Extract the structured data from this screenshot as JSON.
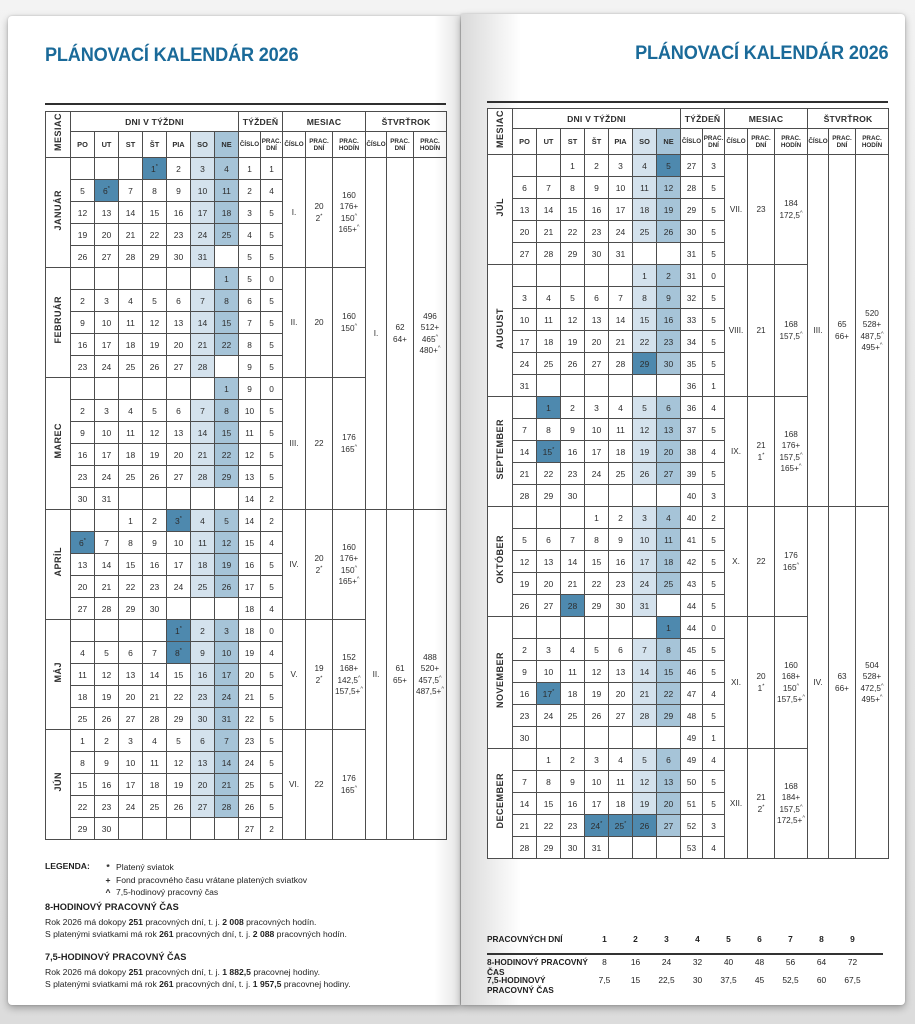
{
  "page_title": "PLÁNOVACÍ KALENDÁR 2026",
  "colors": {
    "accent": "#1a6a99",
    "holiday": "#4e89ae",
    "sunday": "#a6c4d8",
    "saturday": "#d4e2ed"
  },
  "table_header": {
    "mesiac_vertical": "MESIAC",
    "dni_v_tyzdni": "DNI V TÝŽDNI",
    "tyzden": "TÝŽDEŇ",
    "mesiac": "MESIAC",
    "stvrtrok": "ŠTVRŤROK",
    "days": [
      "PO",
      "UT",
      "ST",
      "ŠT",
      "PIA",
      "SO",
      "NE"
    ],
    "cislo": "ČÍSLO",
    "prac_dni": "PRAC.\nDNÍ",
    "prac_hodin": "PRAC.\nHODÍN"
  },
  "left_months": [
    {
      "name": "JANUÁR",
      "cislo": "I.",
      "dni": [
        "20",
        "2*"
      ],
      "hodiny": [
        "160",
        "176+",
        "150^",
        "165+^"
      ],
      "weeks": [
        {
          "d": [
            "",
            "",
            "",
            "1*",
            "2",
            "3",
            "4"
          ],
          "w": "1",
          "p": "1"
        },
        {
          "d": [
            "5",
            "6*",
            "7",
            "8",
            "9",
            "10",
            "11"
          ],
          "w": "2",
          "p": "4"
        },
        {
          "d": [
            "12",
            "13",
            "14",
            "15",
            "16",
            "17",
            "18"
          ],
          "w": "3",
          "p": "5"
        },
        {
          "d": [
            "19",
            "20",
            "21",
            "22",
            "23",
            "24",
            "25"
          ],
          "w": "4",
          "p": "5"
        },
        {
          "d": [
            "26",
            "27",
            "28",
            "29",
            "30",
            "31",
            ""
          ],
          "w": "5",
          "p": "5"
        }
      ]
    },
    {
      "name": "FEBRUÁR",
      "cislo": "II.",
      "dni": [
        "20"
      ],
      "hodiny": [
        "160",
        "150^"
      ],
      "weeks": [
        {
          "d": [
            "",
            "",
            "",
            "",
            "",
            "",
            "1"
          ],
          "w": "5",
          "p": "0"
        },
        {
          "d": [
            "2",
            "3",
            "4",
            "5",
            "6",
            "7",
            "8"
          ],
          "w": "6",
          "p": "5"
        },
        {
          "d": [
            "9",
            "10",
            "11",
            "12",
            "13",
            "14",
            "15"
          ],
          "w": "7",
          "p": "5"
        },
        {
          "d": [
            "16",
            "17",
            "18",
            "19",
            "20",
            "21",
            "22"
          ],
          "w": "8",
          "p": "5"
        },
        {
          "d": [
            "23",
            "24",
            "25",
            "26",
            "27",
            "28",
            ""
          ],
          "w": "9",
          "p": "5"
        }
      ]
    },
    {
      "name": "MAREC",
      "cislo": "III.",
      "dni": [
        "22"
      ],
      "hodiny": [
        "176",
        "165^"
      ],
      "weeks": [
        {
          "d": [
            "",
            "",
            "",
            "",
            "",
            "",
            "1"
          ],
          "w": "9",
          "p": "0"
        },
        {
          "d": [
            "2",
            "3",
            "4",
            "5",
            "6",
            "7",
            "8"
          ],
          "w": "10",
          "p": "5"
        },
        {
          "d": [
            "9",
            "10",
            "11",
            "12",
            "13",
            "14",
            "15"
          ],
          "w": "11",
          "p": "5"
        },
        {
          "d": [
            "16",
            "17",
            "18",
            "19",
            "20",
            "21",
            "22"
          ],
          "w": "12",
          "p": "5"
        },
        {
          "d": [
            "23",
            "24",
            "25",
            "26",
            "27",
            "28",
            "29"
          ],
          "w": "13",
          "p": "5"
        },
        {
          "d": [
            "30",
            "31",
            "",
            "",
            "",
            "",
            ""
          ],
          "w": "14",
          "p": "2"
        }
      ]
    },
    {
      "name": "APRÍL",
      "cislo": "IV.",
      "dni": [
        "20",
        "2*"
      ],
      "hodiny": [
        "160",
        "176+",
        "150^",
        "165+^"
      ],
      "weeks": [
        {
          "d": [
            "",
            "",
            "1",
            "2",
            "3*",
            "4",
            "5"
          ],
          "w": "14",
          "p": "2"
        },
        {
          "d": [
            "6*",
            "7",
            "8",
            "9",
            "10",
            "11",
            "12"
          ],
          "w": "15",
          "p": "4"
        },
        {
          "d": [
            "13",
            "14",
            "15",
            "16",
            "17",
            "18",
            "19"
          ],
          "w": "16",
          "p": "5"
        },
        {
          "d": [
            "20",
            "21",
            "22",
            "23",
            "24",
            "25",
            "26"
          ],
          "w": "17",
          "p": "5"
        },
        {
          "d": [
            "27",
            "28",
            "29",
            "30",
            "",
            "",
            ""
          ],
          "w": "18",
          "p": "4"
        }
      ]
    },
    {
      "name": "MÁJ",
      "cislo": "V.",
      "dni": [
        "19",
        "2*"
      ],
      "hodiny": [
        "152",
        "168+",
        "142,5^",
        "157,5+^"
      ],
      "weeks": [
        {
          "d": [
            "",
            "",
            "",
            "",
            "1*",
            "2",
            "3"
          ],
          "w": "18",
          "p": "0"
        },
        {
          "d": [
            "4",
            "5",
            "6",
            "7",
            "8*",
            "9",
            "10"
          ],
          "w": "19",
          "p": "4"
        },
        {
          "d": [
            "11",
            "12",
            "13",
            "14",
            "15",
            "16",
            "17"
          ],
          "w": "20",
          "p": "5"
        },
        {
          "d": [
            "18",
            "19",
            "20",
            "21",
            "22",
            "23",
            "24"
          ],
          "w": "21",
          "p": "5"
        },
        {
          "d": [
            "25",
            "26",
            "27",
            "28",
            "29",
            "30",
            "31"
          ],
          "w": "22",
          "p": "5"
        }
      ]
    },
    {
      "name": "JÚN",
      "cislo": "VI.",
      "dni": [
        "22"
      ],
      "hodiny": [
        "176",
        "165^"
      ],
      "weeks": [
        {
          "d": [
            "1",
            "2",
            "3",
            "4",
            "5",
            "6",
            "7"
          ],
          "w": "23",
          "p": "5"
        },
        {
          "d": [
            "8",
            "9",
            "10",
            "11",
            "12",
            "13",
            "14"
          ],
          "w": "24",
          "p": "5"
        },
        {
          "d": [
            "15",
            "16",
            "17",
            "18",
            "19",
            "20",
            "21"
          ],
          "w": "25",
          "p": "5"
        },
        {
          "d": [
            "22",
            "23",
            "24",
            "25",
            "26",
            "27",
            "28"
          ],
          "w": "26",
          "p": "5"
        },
        {
          "d": [
            "29",
            "30",
            "",
            "",
            "",
            "",
            ""
          ],
          "w": "27",
          "p": "2"
        }
      ]
    }
  ],
  "right_months": [
    {
      "name": "JÚL",
      "cislo": "VII.",
      "dni": [
        "23"
      ],
      "hodiny": [
        "184",
        "172,5^"
      ],
      "weeks": [
        {
          "d": [
            "",
            "",
            "1",
            "2",
            "3",
            "4",
            "5!"
          ],
          "w": "27",
          "p": "3"
        },
        {
          "d": [
            "6",
            "7",
            "8",
            "9",
            "10",
            "11",
            "12"
          ],
          "w": "28",
          "p": "5"
        },
        {
          "d": [
            "13",
            "14",
            "15",
            "16",
            "17",
            "18",
            "19"
          ],
          "w": "29",
          "p": "5"
        },
        {
          "d": [
            "20",
            "21",
            "22",
            "23",
            "24",
            "25",
            "26"
          ],
          "w": "30",
          "p": "5"
        },
        {
          "d": [
            "27",
            "28",
            "29",
            "30",
            "31",
            "",
            ""
          ],
          "w": "31",
          "p": "5"
        }
      ]
    },
    {
      "name": "AUGUST",
      "cislo": "VIII.",
      "dni": [
        "21"
      ],
      "hodiny": [
        "168",
        "157,5^"
      ],
      "weeks": [
        {
          "d": [
            "",
            "",
            "",
            "",
            "",
            "1",
            "2"
          ],
          "w": "31",
          "p": "0"
        },
        {
          "d": [
            "3",
            "4",
            "5",
            "6",
            "7",
            "8",
            "9"
          ],
          "w": "32",
          "p": "5"
        },
        {
          "d": [
            "10",
            "11",
            "12",
            "13",
            "14",
            "15",
            "16"
          ],
          "w": "33",
          "p": "5"
        },
        {
          "d": [
            "17",
            "18",
            "19",
            "20",
            "21",
            "22",
            "23"
          ],
          "w": "34",
          "p": "5"
        },
        {
          "d": [
            "24",
            "25",
            "26",
            "27",
            "28",
            "29!",
            "30"
          ],
          "w": "35",
          "p": "5"
        },
        {
          "d": [
            "31",
            "",
            "",
            "",
            "",
            "",
            ""
          ],
          "w": "36",
          "p": "1"
        }
      ]
    },
    {
      "name": "SEPTEMBER",
      "cislo": "IX.",
      "dni": [
        "21",
        "1*"
      ],
      "hodiny": [
        "168",
        "176+",
        "157,5^",
        "165+^"
      ],
      "weeks": [
        {
          "d": [
            "",
            "1!",
            "2",
            "3",
            "4",
            "5",
            "6"
          ],
          "w": "36",
          "p": "4"
        },
        {
          "d": [
            "7",
            "8",
            "9",
            "10",
            "11",
            "12",
            "13"
          ],
          "w": "37",
          "p": "5"
        },
        {
          "d": [
            "14",
            "15*",
            "16",
            "17",
            "18",
            "19",
            "20"
          ],
          "w": "38",
          "p": "4"
        },
        {
          "d": [
            "21",
            "22",
            "23",
            "24",
            "25",
            "26",
            "27"
          ],
          "w": "39",
          "p": "5"
        },
        {
          "d": [
            "28",
            "29",
            "30",
            "",
            "",
            "",
            ""
          ],
          "w": "40",
          "p": "3"
        }
      ]
    },
    {
      "name": "OKTÓBER",
      "cislo": "X.",
      "dni": [
        "22"
      ],
      "hodiny": [
        "176",
        "165^"
      ],
      "weeks": [
        {
          "d": [
            "",
            "",
            "",
            "1",
            "2",
            "3",
            "4"
          ],
          "w": "40",
          "p": "2"
        },
        {
          "d": [
            "5",
            "6",
            "7",
            "8",
            "9",
            "10",
            "11"
          ],
          "w": "41",
          "p": "5"
        },
        {
          "d": [
            "12",
            "13",
            "14",
            "15",
            "16",
            "17",
            "18"
          ],
          "w": "42",
          "p": "5"
        },
        {
          "d": [
            "19",
            "20",
            "21",
            "22",
            "23",
            "24",
            "25"
          ],
          "w": "43",
          "p": "5"
        },
        {
          "d": [
            "26",
            "27",
            "28!",
            "29",
            "30",
            "31",
            ""
          ],
          "w": "44",
          "p": "5"
        }
      ]
    },
    {
      "name": "NOVEMBER",
      "cislo": "XI.",
      "dni": [
        "20",
        "1*"
      ],
      "hodiny": [
        "160",
        "168+",
        "150^",
        "157,5+^"
      ],
      "weeks": [
        {
          "d": [
            "",
            "",
            "",
            "",
            "",
            "",
            "1!"
          ],
          "w": "44",
          "p": "0"
        },
        {
          "d": [
            "2",
            "3",
            "4",
            "5",
            "6",
            "7",
            "8"
          ],
          "w": "45",
          "p": "5"
        },
        {
          "d": [
            "9",
            "10",
            "11",
            "12",
            "13",
            "14",
            "15"
          ],
          "w": "46",
          "p": "5"
        },
        {
          "d": [
            "16",
            "17*",
            "18",
            "19",
            "20",
            "21",
            "22"
          ],
          "w": "47",
          "p": "4"
        },
        {
          "d": [
            "23",
            "24",
            "25",
            "26",
            "27",
            "28",
            "29"
          ],
          "w": "48",
          "p": "5"
        },
        {
          "d": [
            "30",
            "",
            "",
            "",
            "",
            "",
            ""
          ],
          "w": "49",
          "p": "1"
        }
      ]
    },
    {
      "name": "DECEMBER",
      "cislo": "XII.",
      "dni": [
        "21",
        "2*"
      ],
      "hodiny": [
        "168",
        "184+",
        "157,5^",
        "172,5+^"
      ],
      "weeks": [
        {
          "d": [
            "",
            "1",
            "2",
            "3",
            "4",
            "5",
            "6"
          ],
          "w": "49",
          "p": "4"
        },
        {
          "d": [
            "7",
            "8",
            "9",
            "10",
            "11",
            "12",
            "13"
          ],
          "w": "50",
          "p": "5"
        },
        {
          "d": [
            "14",
            "15",
            "16",
            "17",
            "18",
            "19",
            "20"
          ],
          "w": "51",
          "p": "5"
        },
        {
          "d": [
            "21",
            "22",
            "23",
            "24*",
            "25*",
            "26!",
            "27"
          ],
          "w": "52",
          "p": "3"
        },
        {
          "d": [
            "28",
            "29",
            "30",
            "31",
            "",
            "",
            ""
          ],
          "w": "53",
          "p": "4"
        }
      ]
    }
  ],
  "left_quarters": [
    {
      "start": 0,
      "span": 3,
      "cislo": "I.",
      "dni": [
        "62",
        "64+"
      ],
      "hodiny": [
        "496",
        "512+",
        "465^",
        "480+^"
      ]
    },
    {
      "start": 3,
      "span": 3,
      "cislo": "II.",
      "dni": [
        "61",
        "65+"
      ],
      "hodiny": [
        "488",
        "520+",
        "457,5^",
        "487,5+^"
      ]
    }
  ],
  "right_quarters": [
    {
      "start": 0,
      "span": 3,
      "cislo": "III.",
      "dni": [
        "65",
        "66+"
      ],
      "hodiny": [
        "520",
        "528+",
        "487,5^",
        "495+^"
      ]
    },
    {
      "start": 3,
      "span": 3,
      "cislo": "IV.",
      "dni": [
        "63",
        "66+"
      ],
      "hodiny": [
        "504",
        "528+",
        "472,5^",
        "495+^"
      ]
    }
  ],
  "legend": {
    "label": "LEGENDA:",
    "items": [
      {
        "sym": "*",
        "text": "Platený sviatok"
      },
      {
        "sym": "+",
        "text": "Fond pracovného času vrátane platených sviatkov"
      },
      {
        "sym": "^",
        "text": "7,5-hodinový pracovný čas"
      }
    ]
  },
  "work_time_8": {
    "title": "8-HODINOVÝ PRACOVNÝ ČAS",
    "lines": [
      [
        "Rok 2026 má dokopy ",
        "251",
        " pracovných dní, t. j. ",
        "2 008",
        " pracovných hodín."
      ],
      [
        "S platenými sviatkami má rok ",
        "261",
        " pracovných dní, t. j. ",
        "2 088",
        " pracovných hodín."
      ]
    ]
  },
  "work_time_75": {
    "title": "7,5-HODINOVÝ PRACOVNÝ ČAS",
    "lines": [
      [
        "Rok 2026 má dokopy ",
        "251",
        " pracovných dní, t. j. ",
        "1 882,5",
        " pracovnej hodiny."
      ],
      [
        "S platenými sviatkami má rok ",
        "261",
        " pracovných dní, t. j. ",
        "1 957,5",
        " pracovnej hodiny."
      ]
    ]
  },
  "work_days_table": {
    "header": {
      "label": "PRACOVNÝCH DNÍ",
      "values": [
        "1",
        "2",
        "3",
        "4",
        "5",
        "6",
        "7",
        "8",
        "9"
      ]
    },
    "rows": [
      {
        "label": "8-HODINOVÝ PRACOVNÝ ČAS",
        "values": [
          "8",
          "16",
          "24",
          "32",
          "40",
          "48",
          "56",
          "64",
          "72"
        ]
      },
      {
        "label": "7,5-HODINOVÝ PRACOVNÝ ČAS",
        "values": [
          "7,5",
          "15",
          "22,5",
          "30",
          "37,5",
          "45",
          "52,5",
          "60",
          "67,5"
        ]
      }
    ]
  }
}
